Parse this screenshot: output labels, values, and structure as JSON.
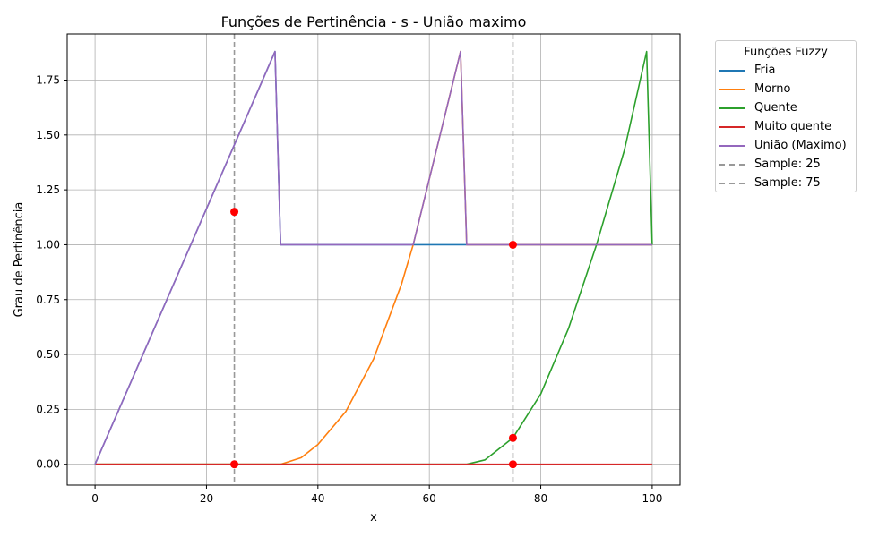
{
  "chart_data": {
    "type": "line",
    "title": "Funções de Pertinência - s - União maximo",
    "xlabel": "x",
    "ylabel": "Grau de Pertinência",
    "xlim": [
      -5,
      105
    ],
    "ylim": [
      -0.095,
      1.96
    ],
    "xticks": [
      0,
      20,
      40,
      60,
      80,
      100
    ],
    "xtick_labels": [
      "0",
      "20",
      "40",
      "60",
      "80",
      "100"
    ],
    "yticks": [
      0,
      0.25,
      0.5,
      0.75,
      1.0,
      1.25,
      1.5,
      1.75
    ],
    "ytick_labels": [
      "0.00",
      "0.25",
      "0.50",
      "0.75",
      "1.00",
      "1.25",
      "1.50",
      "1.75"
    ],
    "grid": true,
    "legend": {
      "title": "Funções Fuzzy",
      "placement": "outside-top-right"
    },
    "series": [
      {
        "name": "Fria",
        "color": "#1f77b4",
        "style": "solid",
        "x": [
          0,
          32.3,
          33.3,
          100
        ],
        "y": [
          0,
          1.88,
          1.0,
          1.0
        ]
      },
      {
        "name": "Morno",
        "color": "#ff7f0e",
        "style": "solid",
        "x": [
          0,
          33.3,
          37,
          40,
          45,
          50,
          55,
          57.1,
          65.6,
          66.7,
          100
        ],
        "y": [
          0,
          0,
          0.03,
          0.09,
          0.24,
          0.48,
          0.82,
          1.0,
          1.88,
          1.0,
          1.0
        ]
      },
      {
        "name": "Quente",
        "color": "#2ca02c",
        "style": "solid",
        "x": [
          0,
          66.7,
          70,
          75,
          80,
          85,
          90,
          95,
          99,
          100
        ],
        "y": [
          0,
          0,
          0.02,
          0.12,
          0.32,
          0.62,
          1.0,
          1.43,
          1.88,
          1.0
        ]
      },
      {
        "name": "Muito quente",
        "color": "#d62728",
        "style": "solid",
        "x": [
          0,
          100
        ],
        "y": [
          0,
          0
        ]
      },
      {
        "name": "União (Maximo)",
        "color": "#9467bd",
        "style": "solid",
        "x": [
          0,
          32.3,
          33.3,
          57.1,
          65.6,
          66.7,
          100
        ],
        "y": [
          0,
          1.88,
          1.0,
          1.0,
          1.88,
          1.0,
          1.0
        ]
      },
      {
        "name": "Sample: 25",
        "color": "#999999",
        "style": "dashed",
        "vline": 25
      },
      {
        "name": "Sample: 75",
        "color": "#999999",
        "style": "dashed",
        "vline": 75
      }
    ],
    "sample_points": {
      "color": "#ff0000",
      "points": [
        {
          "x": 25,
          "y": 1.15
        },
        {
          "x": 25,
          "y": 0
        },
        {
          "x": 75,
          "y": 1.0
        },
        {
          "x": 75,
          "y": 0.12
        },
        {
          "x": 75,
          "y": 0
        }
      ]
    }
  }
}
